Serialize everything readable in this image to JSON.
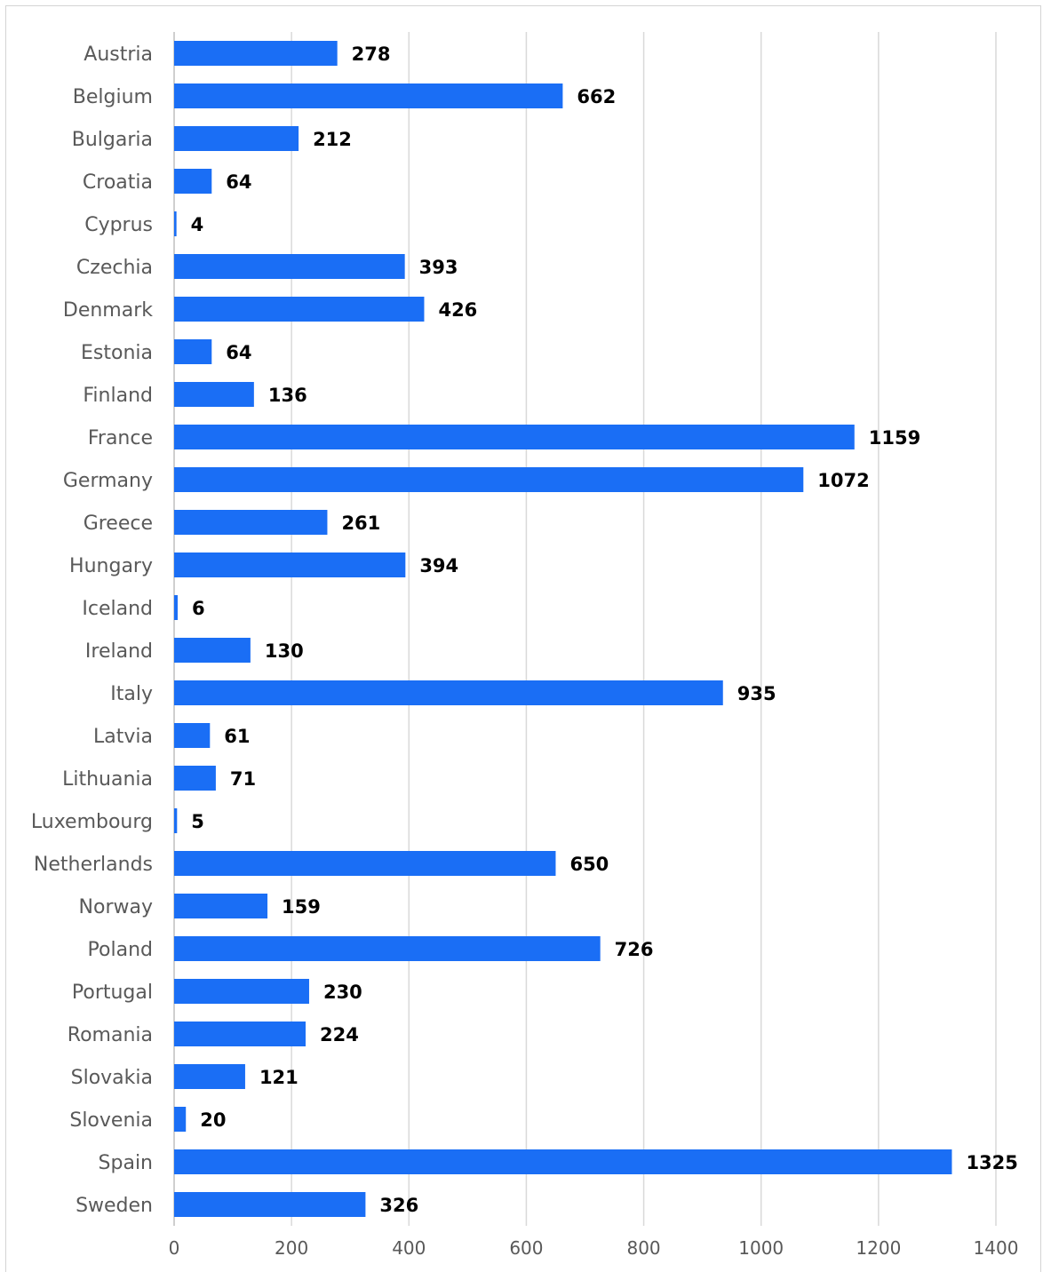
{
  "chart_data": {
    "type": "bar",
    "orientation": "horizontal",
    "title": "",
    "xlabel": "",
    "ylabel": "",
    "categories": [
      "Austria",
      "Belgium",
      "Bulgaria",
      "Croatia",
      "Cyprus",
      "Czechia",
      "Denmark",
      "Estonia",
      "Finland",
      "France",
      "Germany",
      "Greece",
      "Hungary",
      "Iceland",
      "Ireland",
      "Italy",
      "Latvia",
      "Lithuania",
      "Luxembourg",
      "Netherlands",
      "Norway",
      "Poland",
      "Portugal",
      "Romania",
      "Slovakia",
      "Slovenia",
      "Spain",
      "Sweden"
    ],
    "values": [
      278,
      662,
      212,
      64,
      4,
      393,
      426,
      64,
      136,
      1159,
      1072,
      261,
      394,
      6,
      130,
      935,
      61,
      71,
      5,
      650,
      159,
      726,
      230,
      224,
      121,
      20,
      1325,
      326
    ],
    "xlim": [
      0,
      1400
    ],
    "xticks": [
      "0",
      "200",
      "400",
      "600",
      "800",
      "1000",
      "1200",
      "1400"
    ],
    "grid": true,
    "legend": "none",
    "data_labels": true,
    "colors": {
      "bar": "#1a6ef5",
      "grid": "#d9d9d9",
      "category_text": "#595959",
      "tick_text": "#595959",
      "data_label_text": "#000000"
    }
  }
}
